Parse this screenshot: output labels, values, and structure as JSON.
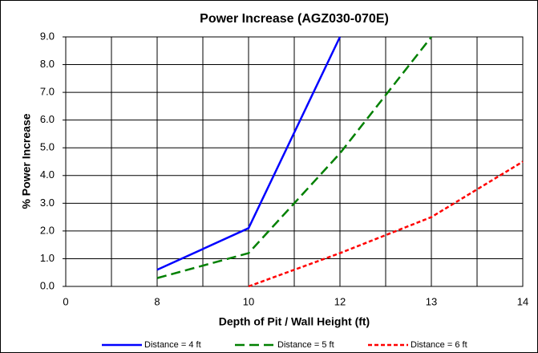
{
  "chart_data": {
    "type": "line",
    "title": "Power Increase (AGZ030-070E)",
    "x_label": "Depth of Pit / Wall Height (ft)",
    "y_label": "% Power Increase",
    "categories": [
      "0",
      "8",
      "10",
      "12",
      "13",
      "14"
    ],
    "series": [
      {
        "name": "Distance = 4 ft",
        "color": "#0000ff",
        "dash": "solid",
        "values": [
          null,
          0.6,
          2.1,
          9.0,
          null,
          null
        ]
      },
      {
        "name": "Distance = 5 ft",
        "color": "#008000",
        "dash": "long",
        "values": [
          null,
          0.3,
          1.2,
          4.8,
          9.0,
          null
        ]
      },
      {
        "name": "Distance = 6 ft",
        "color": "#ff0000",
        "dash": "short",
        "values": [
          null,
          null,
          0.0,
          1.2,
          2.5,
          4.5
        ]
      }
    ],
    "ylim": [
      0,
      9
    ],
    "yticks": [
      {
        "value": 0,
        "label": "0.0"
      },
      {
        "value": 1,
        "label": "1.0"
      },
      {
        "value": 2,
        "label": "2.0"
      },
      {
        "value": 3,
        "label": "3.0"
      },
      {
        "value": 4,
        "label": "4.0"
      },
      {
        "value": 5,
        "label": "5.0"
      },
      {
        "value": 6,
        "label": "6.0"
      },
      {
        "value": 7,
        "label": "7.0"
      },
      {
        "value": 8,
        "label": "8.0"
      },
      {
        "value": 9,
        "label": "9.0"
      }
    ],
    "grid": true,
    "legend": "bottom"
  }
}
